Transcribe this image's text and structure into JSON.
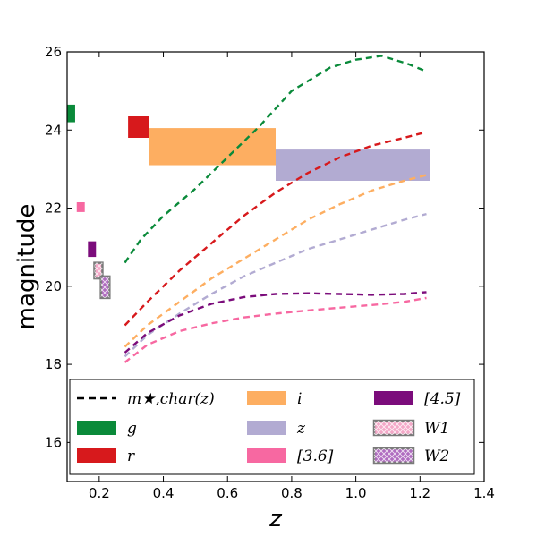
{
  "chart_data": {
    "type": "line",
    "title": "",
    "xlabel": "z",
    "ylabel": "magnitude",
    "xlim": [
      0.1,
      1.4
    ],
    "ylim": [
      15,
      26
    ],
    "xticks": [
      0.2,
      0.4,
      0.6,
      0.8,
      1.0,
      1.2,
      1.4
    ],
    "yticks": [
      16,
      18,
      20,
      22,
      24,
      26
    ],
    "xtick_labels": [
      "0.2",
      "0.4",
      "0.6",
      "0.8",
      "1.0",
      "1.2",
      "1.4"
    ],
    "ytick_labels": [
      "16",
      "18",
      "20",
      "22",
      "24",
      "26"
    ],
    "series": [
      {
        "name": "g",
        "color": "#0a8a3a",
        "x": [
          0.28,
          0.33,
          0.4,
          0.5,
          0.6,
          0.7,
          0.8,
          0.92,
          1.0,
          1.08,
          1.16,
          1.22
        ],
        "y": [
          20.6,
          21.2,
          21.8,
          22.5,
          23.3,
          24.1,
          25.0,
          25.6,
          25.8,
          25.9,
          25.7,
          25.5
        ]
      },
      {
        "name": "r",
        "color": "#d7191c",
        "x": [
          0.28,
          0.35,
          0.45,
          0.55,
          0.65,
          0.75,
          0.85,
          0.95,
          1.05,
          1.15,
          1.22
        ],
        "y": [
          19.0,
          19.6,
          20.4,
          21.1,
          21.8,
          22.4,
          22.9,
          23.3,
          23.6,
          23.8,
          23.95
        ]
      },
      {
        "name": "i",
        "color": "#fdae61",
        "x": [
          0.28,
          0.35,
          0.45,
          0.55,
          0.65,
          0.75,
          0.85,
          0.95,
          1.05,
          1.15,
          1.22
        ],
        "y": [
          18.45,
          19.0,
          19.6,
          20.2,
          20.7,
          21.2,
          21.7,
          22.1,
          22.45,
          22.7,
          22.85
        ]
      },
      {
        "name": "z",
        "color": "#b2abd2",
        "x": [
          0.28,
          0.35,
          0.45,
          0.55,
          0.65,
          0.75,
          0.85,
          0.95,
          1.05,
          1.15,
          1.22
        ],
        "y": [
          18.2,
          18.75,
          19.3,
          19.8,
          20.25,
          20.6,
          20.95,
          21.2,
          21.45,
          21.7,
          21.85
        ]
      },
      {
        "name": "[4.5]",
        "color": "#7b0c7b",
        "x": [
          0.28,
          0.35,
          0.45,
          0.55,
          0.65,
          0.75,
          0.85,
          0.95,
          1.05,
          1.15,
          1.22
        ],
        "y": [
          18.3,
          18.8,
          19.25,
          19.55,
          19.72,
          19.8,
          19.82,
          19.8,
          19.78,
          19.8,
          19.85
        ]
      },
      {
        "name": "[3.6]",
        "color": "#f768a1",
        "x": [
          0.28,
          0.35,
          0.45,
          0.55,
          0.65,
          0.75,
          0.85,
          0.95,
          1.05,
          1.15,
          1.22
        ],
        "y": [
          18.05,
          18.5,
          18.85,
          19.05,
          19.2,
          19.3,
          19.38,
          19.45,
          19.52,
          19.6,
          19.7
        ]
      }
    ],
    "limit_boxes": [
      {
        "name": "g",
        "color": "#0a8a3a",
        "x": [
          0.1,
          0.125
        ],
        "y": [
          24.2,
          24.65
        ],
        "hatch": false
      },
      {
        "name": "r",
        "color": "#d7191c",
        "x": [
          0.29,
          0.355
        ],
        "y": [
          23.8,
          24.35
        ],
        "hatch": false
      },
      {
        "name": "i",
        "color": "#fdae61",
        "x": [
          0.355,
          0.75
        ],
        "y": [
          23.1,
          24.05
        ],
        "hatch": false
      },
      {
        "name": "z",
        "color": "#b2abd2",
        "x": [
          0.75,
          1.23
        ],
        "y": [
          22.7,
          23.5
        ],
        "hatch": false
      },
      {
        "name": "[3.6]",
        "color": "#f768a1",
        "x": [
          0.13,
          0.155
        ],
        "y": [
          21.9,
          22.15
        ],
        "hatch": false
      },
      {
        "name": "[4.5]",
        "color": "#7b0c7b",
        "x": [
          0.165,
          0.19
        ],
        "y": [
          20.75,
          21.15
        ],
        "hatch": false
      },
      {
        "name": "W1",
        "color": "#f4a8c8",
        "x": [
          0.185,
          0.21
        ],
        "y": [
          20.2,
          20.6
        ],
        "hatch": true
      },
      {
        "name": "W2",
        "color": "#b06cc0",
        "x": [
          0.205,
          0.232
        ],
        "y": [
          19.7,
          20.25
        ],
        "hatch": true
      }
    ],
    "legend": {
      "placement": "bottom",
      "entries": [
        {
          "label": "m★,char(z)",
          "kind": "line",
          "color": "#000000"
        },
        {
          "label": "g",
          "kind": "patch",
          "color": "#0a8a3a"
        },
        {
          "label": "r",
          "kind": "patch",
          "color": "#d7191c"
        },
        {
          "label": "i",
          "kind": "patch",
          "color": "#fdae61"
        },
        {
          "label": "z",
          "kind": "patch",
          "color": "#b2abd2"
        },
        {
          "label": "[3.6]",
          "kind": "patch",
          "color": "#f768a1"
        },
        {
          "label": "[4.5]",
          "kind": "patch",
          "color": "#7b0c7b"
        },
        {
          "label": "W1",
          "kind": "hatch",
          "color": "#f4a8c8"
        },
        {
          "label": "W2",
          "kind": "hatch",
          "color": "#b06cc0"
        }
      ]
    }
  }
}
